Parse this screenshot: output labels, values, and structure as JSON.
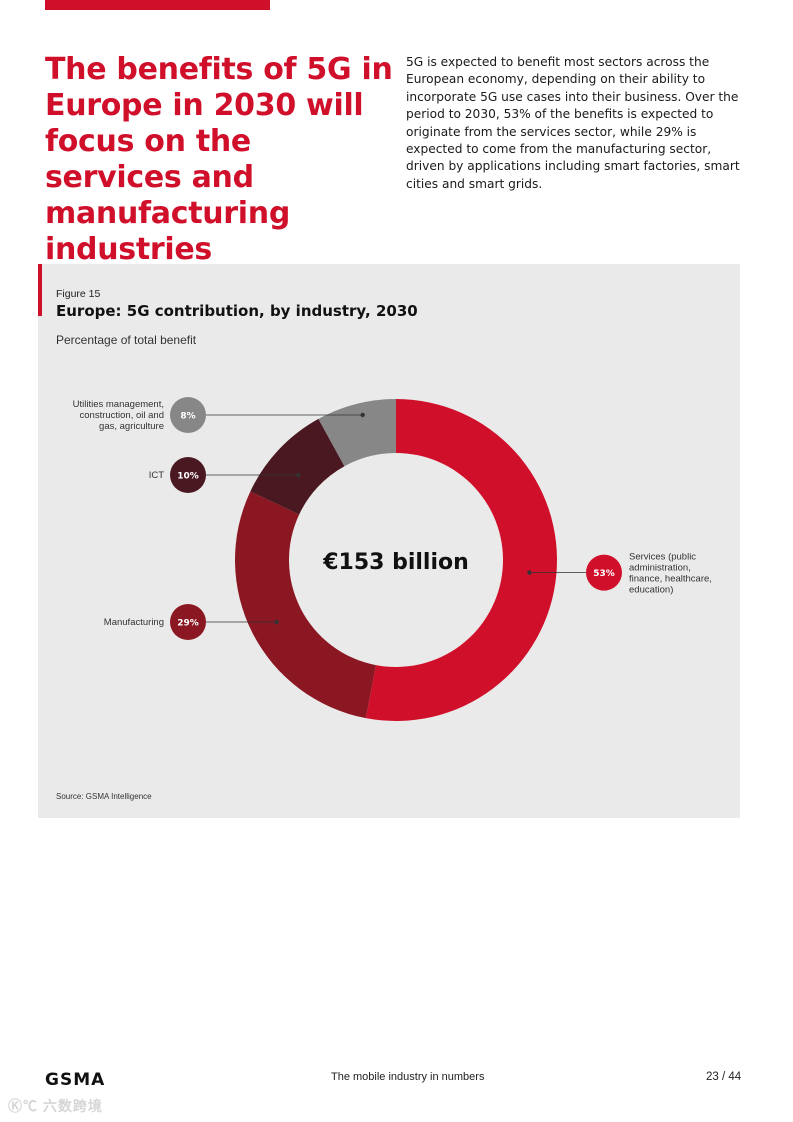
{
  "page": {
    "headline": "The benefits of 5G in Europe in 2030 will focus on the services and manufacturing industries",
    "intro": "5G is expected to benefit most sectors across the European economy, depending on their ability to incorporate 5G use cases into their business. Over the period to 2030, 53% of the benefits is expected to originate from the services sector, while 29% is expected to come from the manufacturing sector, driven by applications including smart factories, smart cities and smart grids."
  },
  "figure": {
    "label": "Figure 15",
    "source": "Source: GSMA Intelligence"
  },
  "chart_data": {
    "type": "pie",
    "donut": true,
    "title": "Europe: 5G contribution, by industry, 2030",
    "subtitle": "Percentage of total benefit",
    "center_label": "€153 billion",
    "unit": "%",
    "slices": [
      {
        "name": "Services (public administration, finance, healthcare, education)",
        "lines": [
          "Services (public",
          "administration,",
          "finance, healthcare,",
          "education)"
        ],
        "value": 53,
        "label": "53%",
        "color": "#d0102a",
        "side": "right"
      },
      {
        "name": "Manufacturing",
        "lines": [
          "Manufacturing"
        ],
        "value": 29,
        "label": "29%",
        "color": "#8b1722",
        "side": "left"
      },
      {
        "name": "ICT",
        "lines": [
          "ICT"
        ],
        "value": 10,
        "label": "10%",
        "color": "#4a1820",
        "side": "left"
      },
      {
        "name": "Utilities management, construction, oil and gas, agriculture",
        "lines": [
          "Utilities management,",
          "construction, oil and",
          "gas, agriculture"
        ],
        "value": 8,
        "label": "8%",
        "color": "#878787",
        "side": "left"
      }
    ]
  },
  "footer": {
    "logo": "GSMA",
    "center": "The mobile industry in numbers",
    "page": "23 / 44"
  },
  "watermark": "Ⓚ℃ 六数跨境"
}
